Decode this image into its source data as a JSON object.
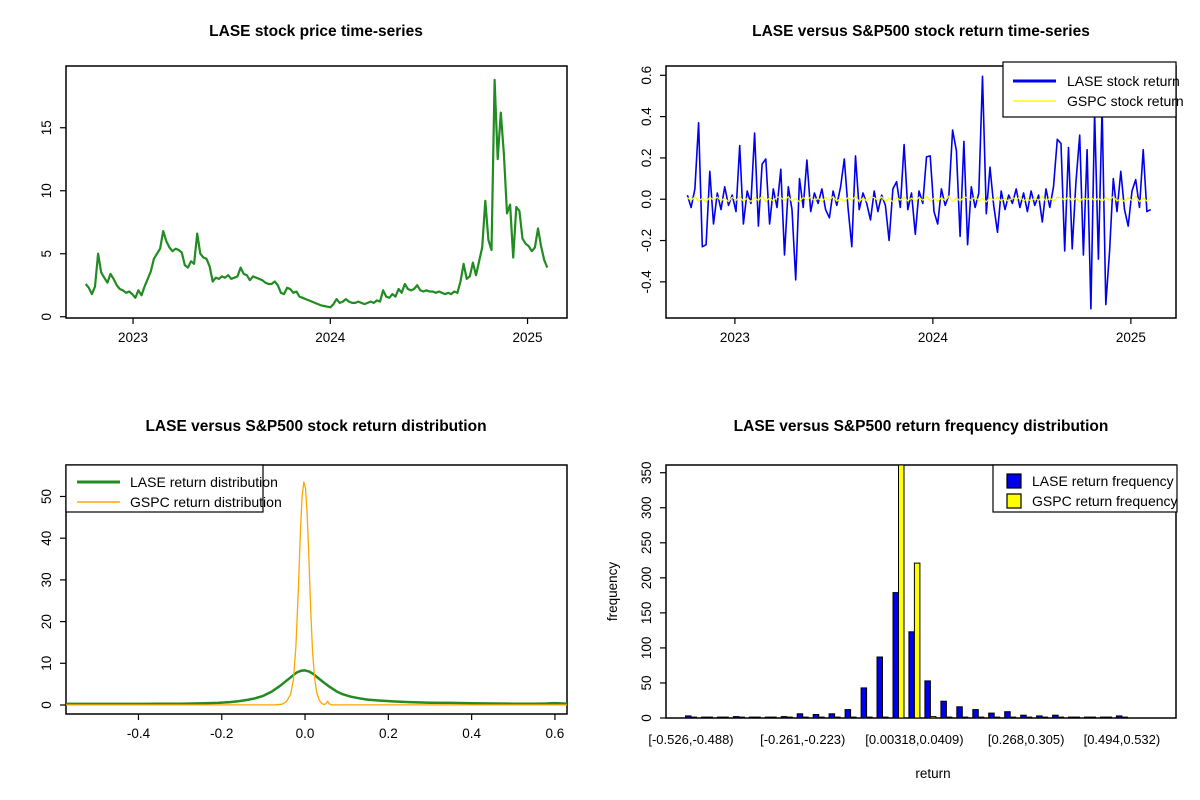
{
  "figure": {
    "background": "#FFFFFF"
  },
  "colors": {
    "lase_price": "#228B22",
    "lase_return": "#0000EE",
    "gspc_return": "#FFFF00",
    "lase_density": "#228B22",
    "gspc_density": "#FFA500",
    "axis": "#000000"
  },
  "chart_data": [
    {
      "id": "price",
      "type": "line",
      "title": "LASE stock price time-series",
      "xlim": [
        2022.66,
        2025.2
      ],
      "ylim": [
        -0.1,
        19.9
      ],
      "x_ticks": [
        "2023",
        "2024",
        "2025"
      ],
      "y_ticks": [
        "0",
        "5",
        "10",
        "15"
      ],
      "series": [
        {
          "name": "LASE stock price",
          "color": "#228B22",
          "width": 2.2,
          "x_start": 2022.76,
          "x_end": 2025.1,
          "values": [
            2.6,
            2.3,
            1.8,
            2.4,
            5.0,
            3.5,
            3.1,
            2.7,
            3.4,
            3.0,
            2.5,
            2.2,
            2.1,
            1.9,
            2.0,
            1.8,
            1.5,
            2.1,
            1.7,
            2.4,
            3.0,
            3.6,
            4.6,
            5.0,
            5.4,
            6.8,
            6.0,
            5.5,
            5.2,
            5.4,
            5.3,
            5.1,
            4.1,
            3.9,
            4.4,
            4.2,
            6.6,
            5.0,
            4.7,
            4.6,
            4.0,
            2.8,
            3.1,
            3.0,
            3.2,
            3.1,
            3.3,
            3.0,
            3.1,
            3.2,
            3.9,
            3.4,
            3.3,
            2.9,
            3.2,
            3.1,
            3.0,
            2.9,
            2.7,
            2.6,
            2.6,
            2.8,
            2.5,
            1.9,
            1.8,
            2.3,
            2.2,
            1.9,
            2.0,
            1.6,
            1.5,
            1.4,
            1.3,
            1.2,
            1.1,
            1.0,
            0.9,
            0.85,
            0.8,
            0.75,
            1.0,
            1.4,
            1.1,
            1.2,
            1.4,
            1.2,
            1.1,
            1.1,
            1.2,
            1.1,
            1.0,
            1.1,
            1.2,
            1.1,
            1.3,
            1.2,
            2.1,
            1.6,
            1.5,
            1.8,
            1.6,
            2.2,
            1.9,
            2.6,
            2.2,
            2.1,
            2.2,
            2.5,
            2.1,
            2.0,
            2.1,
            2.0,
            2.0,
            1.9,
            2.0,
            1.9,
            1.8,
            1.9,
            1.8,
            2.0,
            1.9,
            2.8,
            4.2,
            3.0,
            3.2,
            4.3,
            3.3,
            4.4,
            5.5,
            9.2,
            6.1,
            5.3,
            18.8,
            12.5,
            16.2,
            12.9,
            8.2,
            8.9,
            4.7,
            8.7,
            8.4,
            6.2,
            5.8,
            5.6,
            5.2,
            5.5,
            7.0,
            5.6,
            4.5,
            3.9
          ]
        }
      ]
    },
    {
      "id": "returns",
      "type": "line",
      "title": "LASE versus S&P500 stock return time-series",
      "xlim": [
        2022.652,
        2025.228
      ],
      "ylim": [
        -0.575,
        0.645
      ],
      "x_ticks": [
        "2023",
        "2024",
        "2025"
      ],
      "y_ticks": [
        "-0.4",
        "-0.2",
        "0.0",
        "0.2",
        "0.4",
        "0.6"
      ],
      "legend": {
        "position": "top-right",
        "items": [
          {
            "label": "LASE stock return",
            "color": "#0000EE",
            "type": "line",
            "weight": 3
          },
          {
            "label": "GSPC stock return",
            "color": "#FFFF00",
            "type": "line",
            "weight": 1.5
          }
        ]
      },
      "series": [
        {
          "name": "LASE stock return",
          "color": "#0000EE",
          "width": 1.6,
          "x_start": 2022.76,
          "x_end": 2025.1,
          "values": [
            0.02,
            -0.04,
            0.05,
            0.37,
            -0.23,
            -0.22,
            0.135,
            -0.12,
            0.03,
            -0.05,
            0.06,
            -0.03,
            0.02,
            -0.06,
            0.26,
            -0.12,
            0.04,
            -0.02,
            0.32,
            -0.13,
            0.17,
            0.195,
            -0.12,
            0.05,
            -0.04,
            0.145,
            -0.27,
            0.06,
            -0.05,
            -0.39,
            0.1,
            -0.04,
            0.19,
            -0.06,
            0.03,
            -0.02,
            0.05,
            -0.05,
            -0.09,
            0.04,
            -0.03,
            0.06,
            0.195,
            -0.04,
            -0.23,
            0.21,
            -0.05,
            0.03,
            -0.02,
            -0.1,
            0.04,
            -0.06,
            0.02,
            -0.03,
            -0.2,
            0.05,
            0.085,
            -0.04,
            0.265,
            -0.05,
            0.03,
            -0.17,
            0.04,
            -0.02,
            0.205,
            0.21,
            -0.06,
            -0.12,
            0.05,
            -0.03,
            0.02,
            0.335,
            0.235,
            -0.18,
            0.28,
            -0.22,
            0.06,
            -0.04,
            0.03,
            0.595,
            -0.07,
            0.155,
            -0.03,
            -0.16,
            0.04,
            -0.05,
            0.02,
            -0.02,
            0.05,
            -0.04,
            0.03,
            -0.06,
            0.04,
            -0.03,
            0.02,
            -0.11,
            0.05,
            -0.04,
            0.06,
            0.29,
            0.27,
            -0.25,
            0.25,
            -0.24,
            0.08,
            0.31,
            -0.27,
            0.24,
            -0.53,
            0.42,
            -0.29,
            0.44,
            -0.51,
            -0.25,
            0.1,
            -0.06,
            0.135,
            -0.05,
            -0.13,
            0.04,
            0.095,
            -0.04,
            0.24,
            -0.06,
            -0.05
          ]
        },
        {
          "name": "GSPC stock return",
          "color": "#FFFF00",
          "width": 1.2,
          "x_start": 2022.76,
          "x_end": 2025.1,
          "values": [
            0.008,
            -0.006,
            0.012,
            -0.01,
            0.005,
            -0.013,
            0.009,
            -0.004,
            0.011,
            -0.008,
            0.006,
            -0.012,
            0.01,
            -0.005,
            0.013,
            -0.009,
            0.004,
            -0.011,
            0.008,
            -0.006,
            0.015,
            -0.012,
            0.007,
            -0.009,
            0.011,
            0.008,
            -0.006,
            0.012,
            -0.01,
            0.005,
            -0.013,
            0.009,
            -0.004,
            0.011,
            -0.008,
            0.006,
            -0.012,
            0.01,
            -0.005,
            0.013,
            -0.009,
            0.004,
            -0.011,
            0.008,
            -0.006,
            0.015,
            -0.012,
            0.007,
            -0.009,
            0.011,
            0.008,
            -0.006,
            0.012,
            -0.01,
            0.005,
            -0.013,
            0.009,
            -0.004,
            0.011,
            -0.008,
            0.006,
            -0.012,
            0.01,
            -0.005,
            0.013,
            -0.009,
            0.004,
            -0.011,
            0.008,
            -0.006,
            0.015,
            -0.012,
            0.007,
            -0.009,
            0.011,
            0.008,
            -0.006,
            0.012,
            -0.01,
            0.005,
            -0.013,
            0.009,
            -0.004,
            0.011,
            -0.008,
            0.006,
            -0.012,
            0.01,
            -0.005,
            0.013,
            -0.009,
            0.004,
            -0.011,
            0.008,
            -0.006,
            0.015,
            -0.012,
            0.007,
            -0.009,
            0.011,
            0.008,
            -0.006,
            0.012,
            -0.01,
            0.005,
            -0.013,
            0.009,
            -0.004,
            0.011,
            -0.008,
            0.006,
            -0.012,
            0.01,
            -0.005,
            0.013,
            -0.009,
            0.004,
            -0.011,
            0.008,
            -0.006,
            0.015,
            -0.012,
            0.007,
            -0.009,
            0.011
          ]
        }
      ]
    },
    {
      "id": "density",
      "type": "line",
      "title": "LASE versus S&P500 stock return distribution",
      "xlim": [
        -0.574,
        0.629
      ],
      "ylim": [
        -2.16,
        57.55
      ],
      "x_ticks": [
        "-0.4",
        "-0.2",
        "0.0",
        "0.2",
        "0.4",
        "0.6"
      ],
      "y_ticks": [
        "0",
        "10",
        "20",
        "30",
        "40",
        "50"
      ],
      "legend": {
        "position": "top-left",
        "items": [
          {
            "label": "LASE return distribution",
            "color": "#228B22",
            "type": "line",
            "weight": 3
          },
          {
            "label": "GSPC return distribution",
            "color": "#FFA500",
            "type": "line",
            "weight": 1.5
          }
        ]
      },
      "series": [
        {
          "name": "LASE return distribution",
          "color": "#228B22",
          "width": 2.5,
          "points": [
            [
              -0.574,
              0.25
            ],
            [
              -0.5,
              0.25
            ],
            [
              -0.45,
              0.25
            ],
            [
              -0.4,
              0.25
            ],
            [
              -0.35,
              0.3
            ],
            [
              -0.3,
              0.3
            ],
            [
              -0.27,
              0.35
            ],
            [
              -0.24,
              0.4
            ],
            [
              -0.21,
              0.5
            ],
            [
              -0.18,
              0.7
            ],
            [
              -0.16,
              0.9
            ],
            [
              -0.14,
              1.2
            ],
            [
              -0.12,
              1.6
            ],
            [
              -0.1,
              2.2
            ],
            [
              -0.08,
              3.2
            ],
            [
              -0.06,
              4.6
            ],
            [
              -0.045,
              5.8
            ],
            [
              -0.03,
              7.0
            ],
            [
              -0.02,
              7.8
            ],
            [
              -0.01,
              8.2
            ],
            [
              0.0,
              8.3
            ],
            [
              0.01,
              8.0
            ],
            [
              0.02,
              7.4
            ],
            [
              0.03,
              6.6
            ],
            [
              0.045,
              5.4
            ],
            [
              0.06,
              4.3
            ],
            [
              0.075,
              3.3
            ],
            [
              0.09,
              2.6
            ],
            [
              0.11,
              2.0
            ],
            [
              0.13,
              1.6
            ],
            [
              0.15,
              1.3
            ],
            [
              0.18,
              1.05
            ],
            [
              0.21,
              0.85
            ],
            [
              0.25,
              0.7
            ],
            [
              0.3,
              0.55
            ],
            [
              0.35,
              0.5
            ],
            [
              0.4,
              0.4
            ],
            [
              0.45,
              0.35
            ],
            [
              0.5,
              0.3
            ],
            [
              0.55,
              0.3
            ],
            [
              0.58,
              0.35
            ],
            [
              0.6,
              0.45
            ],
            [
              0.62,
              0.35
            ],
            [
              0.629,
              0.3
            ]
          ]
        },
        {
          "name": "GSPC return distribution",
          "color": "#FFA500",
          "width": 1.3,
          "points": [
            [
              -0.574,
              0.02
            ],
            [
              -0.1,
              0.02
            ],
            [
              -0.07,
              0.05
            ],
            [
              -0.055,
              0.2
            ],
            [
              -0.045,
              0.8
            ],
            [
              -0.035,
              2.5
            ],
            [
              -0.028,
              6
            ],
            [
              -0.022,
              14
            ],
            [
              -0.016,
              28
            ],
            [
              -0.011,
              42
            ],
            [
              -0.007,
              50
            ],
            [
              -0.003,
              53.5
            ],
            [
              0.001,
              52
            ],
            [
              0.005,
              46
            ],
            [
              0.009,
              36
            ],
            [
              0.013,
              24
            ],
            [
              0.018,
              13
            ],
            [
              0.023,
              6.5
            ],
            [
              0.028,
              3
            ],
            [
              0.034,
              1.2
            ],
            [
              0.04,
              0.4
            ],
            [
              0.046,
              0.1
            ],
            [
              0.05,
              0.3
            ],
            [
              0.054,
              0.9
            ],
            [
              0.058,
              0.3
            ],
            [
              0.063,
              0.05
            ],
            [
              0.1,
              0.02
            ],
            [
              0.629,
              0.02
            ]
          ]
        }
      ]
    },
    {
      "id": "histogram",
      "type": "bar",
      "title": "LASE versus S&P500 return frequency distribution",
      "xlab": "return",
      "ylab": "frequency",
      "ylim": [
        0,
        361
      ],
      "y_ticks": [
        "0",
        "50",
        "100",
        "150",
        "200",
        "250",
        "300",
        "350"
      ],
      "bins": 28,
      "bin_labels": [
        {
          "index": 0,
          "label": "[-0.526,-0.488)"
        },
        {
          "index": 7,
          "label": "[-0.261,-0.223)"
        },
        {
          "index": 14,
          "label": "[0.00318,0.0409)"
        },
        {
          "index": 21,
          "label": "[0.268,0.305)"
        },
        {
          "index": 27,
          "label": "[0.494,0.532)"
        }
      ],
      "legend": {
        "position": "top-right",
        "items": [
          {
            "label": "LASE return frequency",
            "color": "#0000EE",
            "type": "box"
          },
          {
            "label": "GSPC return frequency",
            "color": "#FFFF00",
            "type": "box"
          }
        ]
      },
      "series": [
        {
          "name": "LASE return frequency",
          "color": "#0000EE",
          "values": [
            3,
            1,
            1,
            2,
            1,
            1,
            2,
            6,
            5,
            6,
            12,
            43,
            87,
            179,
            123,
            53,
            24,
            16,
            12,
            7,
            9,
            4,
            3,
            4,
            1,
            1,
            1,
            3
          ]
        },
        {
          "name": "GSPC return frequency",
          "color": "#FFFF00",
          "values": [
            0,
            0,
            0,
            0,
            0,
            0,
            0,
            0,
            0,
            0,
            0,
            0,
            0,
            372,
            221,
            2,
            0,
            0,
            0,
            0,
            0,
            0,
            0,
            0,
            0,
            0,
            0,
            0
          ]
        }
      ]
    }
  ]
}
